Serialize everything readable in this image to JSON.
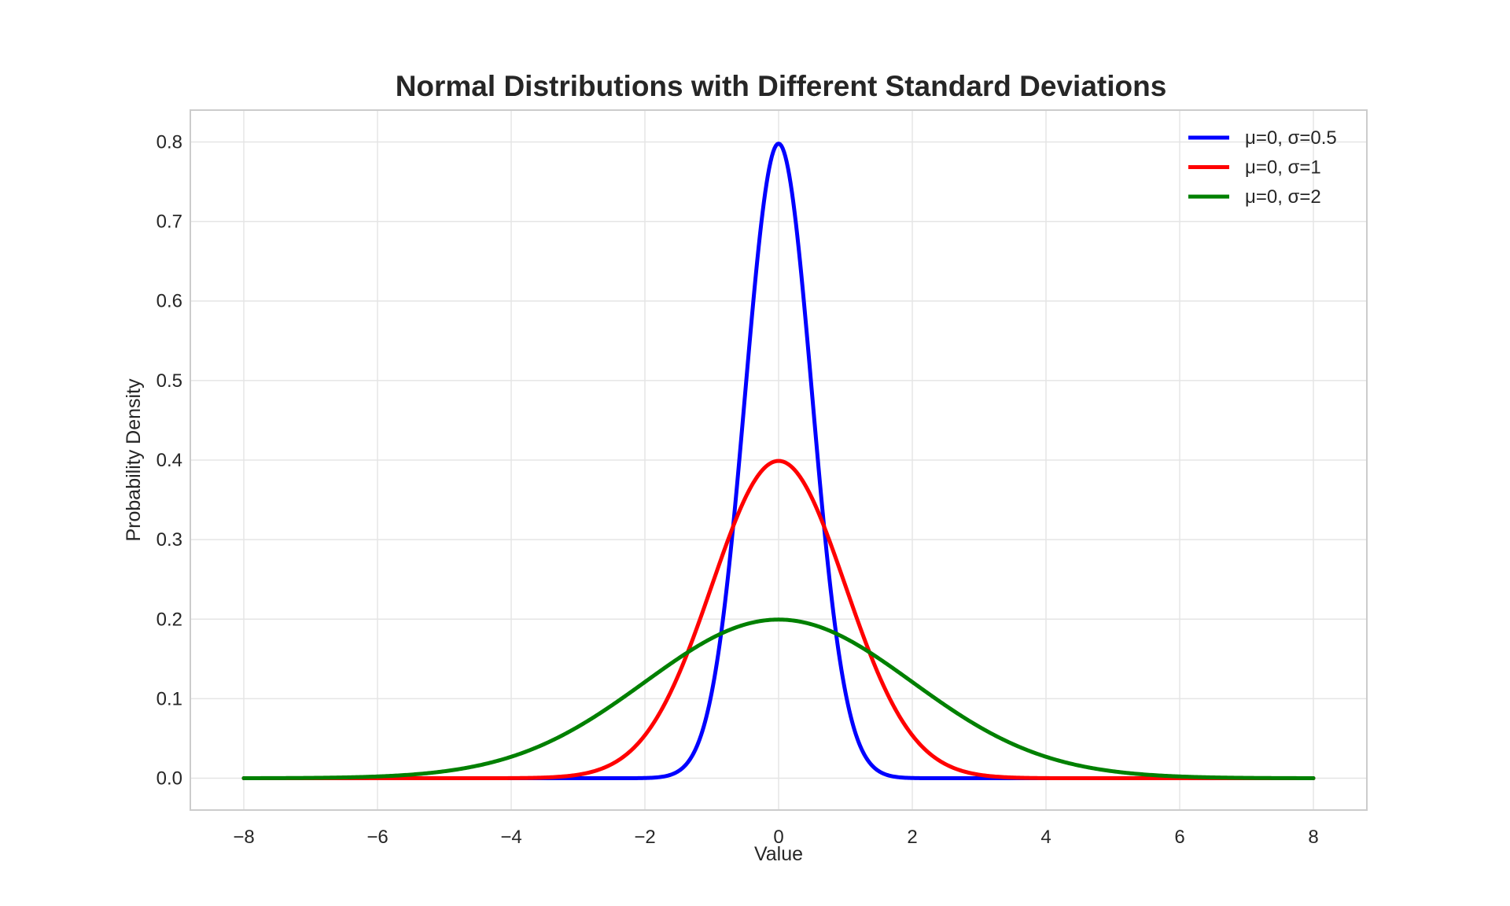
{
  "chart_data": {
    "type": "line",
    "title": "Normal Distributions with Different Standard Deviations",
    "xlabel": "Value",
    "ylabel": "Probability Density",
    "xlim": [
      -8.8,
      8.8
    ],
    "ylim": [
      -0.04,
      0.84
    ],
    "xticks": [
      -8,
      -6,
      -4,
      -2,
      0,
      2,
      4,
      6,
      8
    ],
    "xtick_labels": [
      "−8",
      "−6",
      "−4",
      "−2",
      "0",
      "2",
      "4",
      "6",
      "8"
    ],
    "yticks": [
      0.0,
      0.1,
      0.2,
      0.3,
      0.4,
      0.5,
      0.6,
      0.7,
      0.8
    ],
    "ytick_labels": [
      "0.0",
      "0.1",
      "0.2",
      "0.3",
      "0.4",
      "0.5",
      "0.6",
      "0.7",
      "0.8"
    ],
    "grid": true,
    "legend_position": "top-right",
    "x_range": [
      -8,
      8
    ],
    "series": [
      {
        "name": "μ=0, σ=0.5",
        "mu": 0,
        "sigma": 0.5,
        "color": "#0000ff",
        "peak": 0.798
      },
      {
        "name": "μ=0, σ=1",
        "mu": 0,
        "sigma": 1,
        "color": "#ff0000",
        "peak": 0.399
      },
      {
        "name": "μ=0, σ=2",
        "mu": 0,
        "sigma": 2,
        "color": "#008000",
        "peak": 0.199
      }
    ]
  }
}
